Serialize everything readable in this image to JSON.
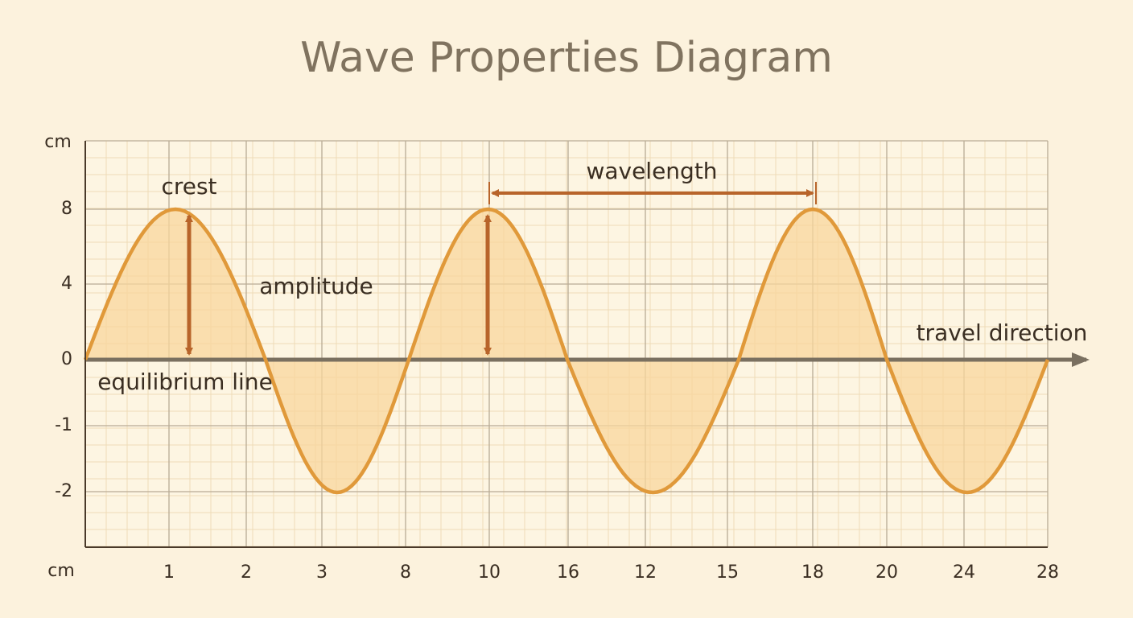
{
  "header": {
    "title": "Wave Properties Diagram"
  },
  "axes": {
    "y_unit": "cm",
    "x_unit": "cm",
    "y_tick_labels": [
      "8",
      "4",
      "0",
      "-1",
      "-2"
    ],
    "x_tick_labels": [
      "1",
      "2",
      "3",
      "8",
      "10",
      "16",
      "12",
      "15",
      "18",
      "20",
      "24",
      "28"
    ]
  },
  "annotations": {
    "crest": "crest",
    "amplitude": "amplitude",
    "equilibrium": "equilibrium line",
    "wavelength": "wavelength",
    "travel": "travel direction"
  }
}
